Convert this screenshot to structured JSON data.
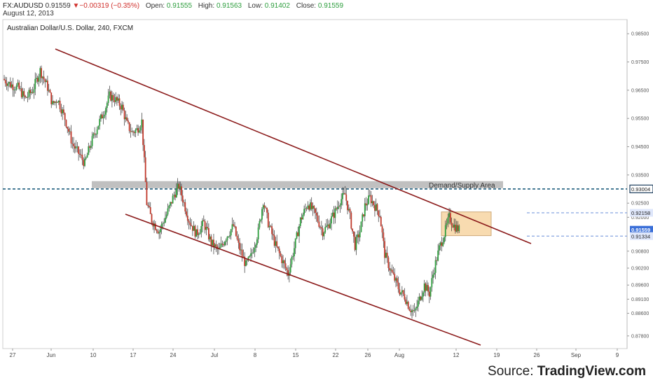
{
  "header": {
    "symbol": "FX:AUDUSD",
    "last": "0.91559",
    "arrow": "▼",
    "change": "−0.00319 (−0.35%)",
    "open_label": "Open:",
    "open": "0.91555",
    "high_label": "High:",
    "high": "0.91563",
    "low_label": "Low:",
    "low": "0.91402",
    "close_label": "Close:",
    "close": "0.91559",
    "date": "August 12, 2013"
  },
  "panel_title": "Australian Dollar/U.S. Dollar, 240, FXCM",
  "source": {
    "prefix": "Source: ",
    "brand": "TradingView.com"
  },
  "colors": {
    "up": "#2e9e3e",
    "down": "#c0392b",
    "trendline": "#8b1a1a",
    "dashed_level": "#1f5f7f",
    "demand_zone": "#b5b5b5",
    "highlight_box": "#f8d8a8",
    "badge_blue": "#3a6fd8",
    "badge_dark": "#1f3f5f"
  },
  "chart_data": {
    "type": "candlestick",
    "title": "Australian Dollar/U.S. Dollar, 240, FXCM",
    "ylim": [
      0.8735,
      0.99
    ],
    "x_ticks": [
      "27",
      "Jun",
      "10",
      "17",
      "24",
      "Jul",
      "8",
      "15",
      "22",
      "26",
      "Aug",
      "12",
      "19",
      "26",
      "Sep",
      "9"
    ],
    "y_ticks": [
      "0.98500",
      "0.97500",
      "0.96500",
      "0.95500",
      "0.94500",
      "0.93500",
      "0.92500",
      "0.92000",
      "0.90800",
      "0.90200",
      "0.89600",
      "0.89100",
      "0.88600",
      "0.87800"
    ],
    "y_tick_values": [
      0.985,
      0.975,
      0.965,
      0.955,
      0.945,
      0.935,
      0.925,
      0.92,
      0.908,
      0.902,
      0.896,
      0.891,
      0.886,
      0.878
    ],
    "price_path": [
      [
        0,
        0.969
      ],
      [
        6,
        0.967
      ],
      [
        12,
        0.966
      ],
      [
        18,
        0.962
      ],
      [
        24,
        0.965
      ],
      [
        30,
        0.972
      ],
      [
        36,
        0.966
      ],
      [
        40,
        0.96
      ],
      [
        44,
        0.962
      ],
      [
        50,
        0.955
      ],
      [
        56,
        0.946
      ],
      [
        62,
        0.942
      ],
      [
        66,
        0.939
      ],
      [
        70,
        0.945
      ],
      [
        76,
        0.952
      ],
      [
        82,
        0.958
      ],
      [
        86,
        0.963
      ],
      [
        90,
        0.962
      ],
      [
        96,
        0.959
      ],
      [
        100,
        0.953
      ],
      [
        104,
        0.95
      ],
      [
        108,
        0.951
      ],
      [
        112,
        0.954
      ],
      [
        116,
        0.925
      ],
      [
        120,
        0.919
      ],
      [
        126,
        0.915
      ],
      [
        132,
        0.921
      ],
      [
        138,
        0.928
      ],
      [
        142,
        0.931
      ],
      [
        146,
        0.925
      ],
      [
        150,
        0.919
      ],
      [
        156,
        0.914
      ],
      [
        162,
        0.918
      ],
      [
        168,
        0.911
      ],
      [
        174,
        0.908
      ],
      [
        180,
        0.913
      ],
      [
        186,
        0.917
      ],
      [
        190,
        0.91
      ],
      [
        196,
        0.903
      ],
      [
        200,
        0.906
      ],
      [
        206,
        0.915
      ],
      [
        210,
        0.926
      ],
      [
        214,
        0.918
      ],
      [
        220,
        0.91
      ],
      [
        226,
        0.904
      ],
      [
        230,
        0.9
      ],
      [
        236,
        0.911
      ],
      [
        240,
        0.919
      ],
      [
        246,
        0.925
      ],
      [
        252,
        0.921
      ],
      [
        258,
        0.915
      ],
      [
        262,
        0.917
      ],
      [
        268,
        0.922
      ],
      [
        272,
        0.926
      ],
      [
        276,
        0.928
      ],
      [
        280,
        0.92
      ],
      [
        284,
        0.91
      ],
      [
        288,
        0.915
      ],
      [
        292,
        0.924
      ],
      [
        296,
        0.927
      ],
      [
        300,
        0.924
      ],
      [
        304,
        0.921
      ],
      [
        308,
        0.907
      ],
      [
        312,
        0.902
      ],
      [
        316,
        0.898
      ],
      [
        320,
        0.894
      ],
      [
        324,
        0.892
      ],
      [
        328,
        0.888
      ],
      [
        332,
        0.886
      ],
      [
        336,
        0.891
      ],
      [
        340,
        0.896
      ],
      [
        344,
        0.893
      ],
      [
        348,
        0.902
      ],
      [
        352,
        0.909
      ],
      [
        356,
        0.914
      ],
      [
        360,
        0.92
      ],
      [
        364,
        0.917
      ],
      [
        368,
        0.9156
      ]
    ],
    "trendlines": [
      {
        "from": [
          0.2,
          0.9795
        ],
        "to": [
          26.5,
          0.8995
        ]
      },
      {
        "from": [
          0.2,
          0.9198
        ],
        "to": [
          26.5,
          0.8745
        ]
      }
    ],
    "levels": [
      {
        "label": "0.93004",
        "value": 0.93004,
        "style": "dashed"
      },
      {
        "label": "0.92158",
        "value": 0.92158,
        "style": "dashed"
      },
      {
        "label": "0.91559",
        "value": 0.91559,
        "style": "solid"
      },
      {
        "label": "0.91334",
        "value": 0.91334,
        "style": "dashed"
      }
    ],
    "zones": [
      {
        "label": "Demand/Supply Area",
        "from": 0.9328,
        "to": 0.9303
      },
      {
        "label": "",
        "from": 0.9219,
        "to": 0.9135
      }
    ]
  }
}
